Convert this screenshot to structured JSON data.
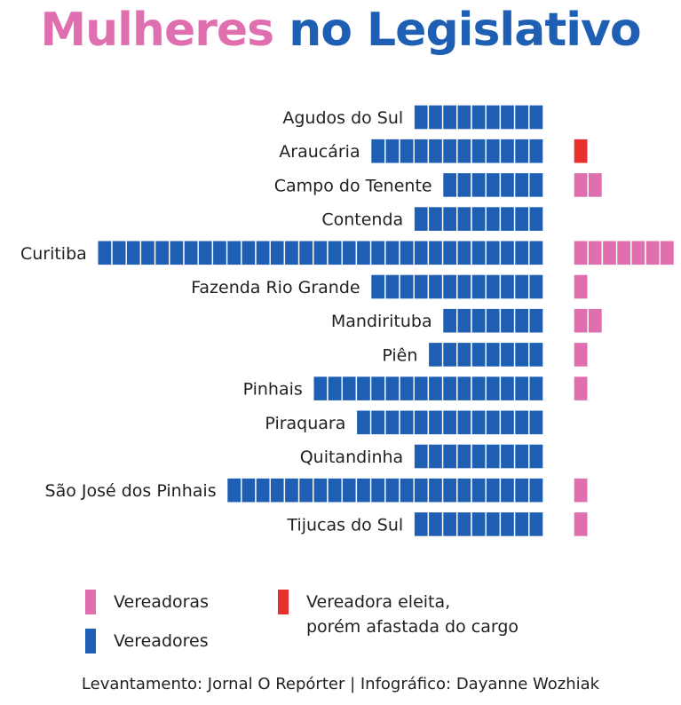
{
  "title": {
    "part1": "Mulheres",
    "part2": "no Legislativo"
  },
  "colors": {
    "pink": "#e06fb0",
    "blue": "#1e5fb3",
    "red": "#e8312f"
  },
  "chart_data": {
    "type": "bar",
    "categories": [
      "Agudos do Sul",
      "Araucária",
      "Campo do Tenente",
      "Contenda",
      "Curitiba",
      "Fazenda Rio Grande",
      "Mandirituba",
      "Piên",
      "Pinhais",
      "Piraquara",
      "Quitandinha",
      "São José dos Pinhais",
      "Tijucas do Sul"
    ],
    "series": [
      {
        "name": "Vereadores",
        "color": "#1e5fb3",
        "values": [
          9,
          12,
          7,
          9,
          31,
          12,
          7,
          8,
          16,
          13,
          9,
          22,
          9
        ]
      },
      {
        "name": "Vereadoras",
        "color": "#e06fb0",
        "values": [
          0,
          0,
          2,
          0,
          7,
          1,
          2,
          1,
          1,
          0,
          0,
          1,
          1
        ]
      },
      {
        "name": "Vereadora eleita, porém afastada do cargo",
        "color": "#e8312f",
        "values": [
          0,
          1,
          0,
          0,
          0,
          0,
          0,
          0,
          0,
          0,
          0,
          0,
          0
        ]
      }
    ]
  },
  "legend": {
    "vereadoras": "Vereadoras",
    "vereadores": "Vereadores",
    "afastada_line1": "Vereadora eleita,",
    "afastada_line2": "porém afastada do cargo"
  },
  "source": "Levantamento: Jornal O Repórter | Infográfico: Dayanne Wozhiak"
}
